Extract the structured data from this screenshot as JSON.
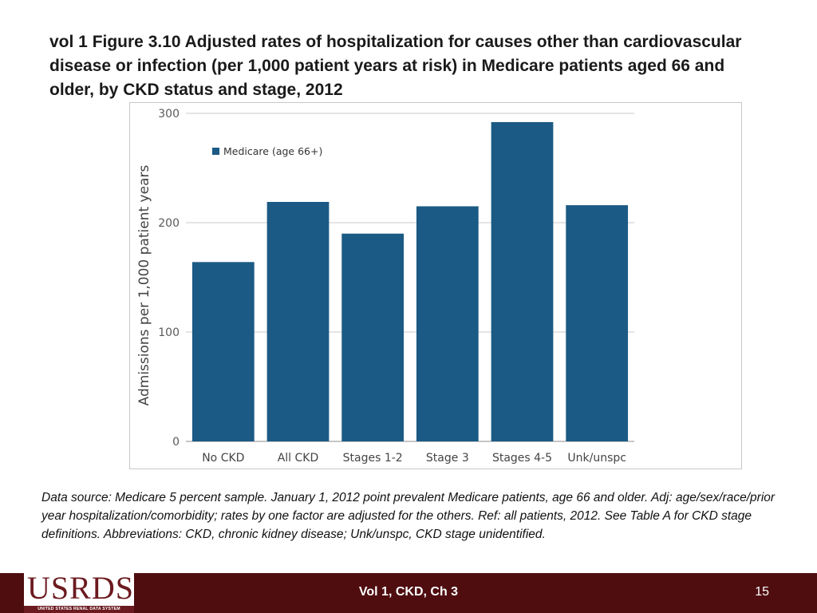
{
  "slide": {
    "title": "vol 1 Figure 3.10  Adjusted rates of hospitalization for causes other than cardiovascular disease or infection (per 1,000 patient years at risk) in Medicare patients aged 66 and older, by CKD status and stage, 2012",
    "source_note": "Data source: Medicare 5 percent sample. January 1, 2012 point prevalent Medicare patients, age 66 and older. Adj: age/sex/race/prior year hospitalization/comorbidity; rates by one factor are adjusted for the others. Ref: all patients, 2012. See Table A for CKD stage definitions. Abbreviations: CKD, chronic kidney disease; Unk/unspc, CKD stage unidentified."
  },
  "chart_data": {
    "type": "bar",
    "title": "",
    "xlabel": "",
    "ylabel": "Admissions per 1,000 patient years",
    "categories": [
      "No CKD",
      "All CKD",
      "Stages 1-2",
      "Stage 3",
      "Stages 4-5",
      "Unk/unspc"
    ],
    "series": [
      {
        "name": "Medicare (age 66+)",
        "values": [
          164,
          219,
          190,
          215,
          292,
          216
        ]
      }
    ],
    "ylim": [
      0,
      300
    ],
    "yticks": [
      0,
      100,
      200,
      300
    ],
    "grid": true,
    "legend_position": "top-left",
    "bar_color": "#1b5a84"
  },
  "footer": {
    "logo_text": "USRDS",
    "logo_subtext": "UNITED STATES RENAL DATA SYSTEM",
    "center_text": "Vol 1, CKD, Ch 3",
    "page_number": "15"
  }
}
